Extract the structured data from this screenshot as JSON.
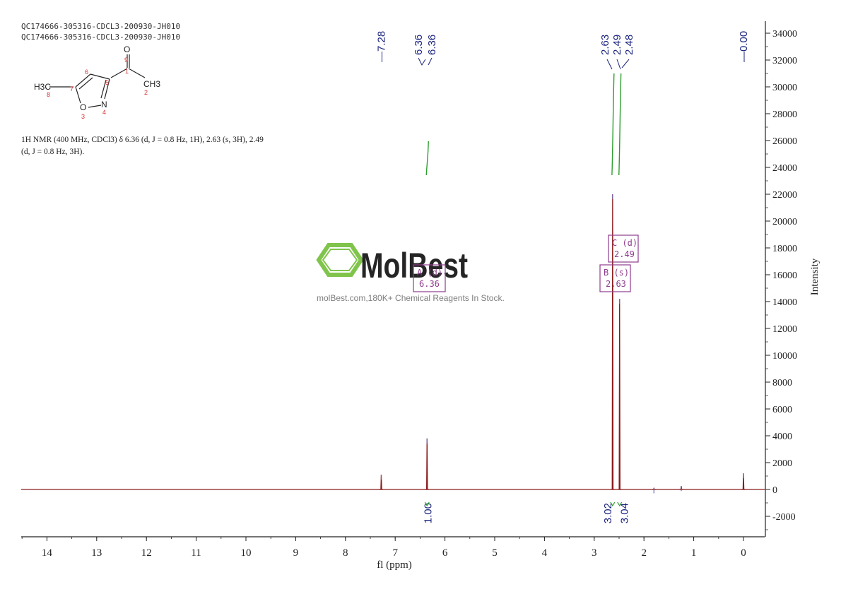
{
  "header": {
    "line1": "QC174666-305316-CDCL3-200930-JH010",
    "line2": "QC174666-305316-CDCL3-200930-JH010"
  },
  "structure": {
    "atoms": {
      "o9": "O",
      "n9": "9",
      "n1": "1",
      "ch3_right": "CH3",
      "n2": "2",
      "n6": "6",
      "n5": "5",
      "h3c_left": "H3C",
      "n7": "7",
      "n8": "8",
      "o3": "O",
      "n3": "3",
      "n_atom": "N",
      "n4": "4"
    }
  },
  "nmr_text": {
    "line1": "1H NMR (400 MHz, CDCl3) δ 6.36 (d, J = 0.8 Hz, 1H), 2.63 (s, 3H), 2.49",
    "line2": "(d, J = 0.8 Hz, 3H)."
  },
  "watermark": {
    "brand": "MolBest",
    "tagline": "molBest.com,180K+ Chemical Reagents In Stock."
  },
  "colors": {
    "spectrum": "#8b1a1a",
    "peak_labels": "#1a237e",
    "integral": "#2e9e2e",
    "multiplet_box": "#8e3d8e",
    "axis": "#222222",
    "brand_green": "#7ac143"
  },
  "chart_data": {
    "type": "line",
    "xlabel": "fl (ppm)",
    "ylabel": "Intensity",
    "xlim": [
      14.5,
      -0.4
    ],
    "ylim": [
      -3500,
      35000
    ],
    "x_ticks": [
      14,
      13,
      12,
      11,
      10,
      9,
      8,
      7,
      6,
      5,
      4,
      3,
      2,
      1,
      0
    ],
    "y_ticks": [
      34000,
      32000,
      30000,
      28000,
      26000,
      24000,
      22000,
      20000,
      18000,
      16000,
      14000,
      12000,
      10000,
      8000,
      6000,
      4000,
      2000,
      0,
      -2000
    ],
    "peaks": [
      {
        "ppm": 7.28,
        "intensity": 1100
      },
      {
        "ppm": 6.36,
        "intensity": 3800
      },
      {
        "ppm": 2.63,
        "intensity": 22000
      },
      {
        "ppm": 2.49,
        "intensity": 14200
      },
      {
        "ppm": 1.25,
        "intensity": 250
      },
      {
        "ppm": 1.8,
        "intensity": 80
      },
      {
        "ppm": 0.0,
        "intensity": 1200
      }
    ],
    "peak_labels": [
      "7.28",
      "6.36",
      "6.36",
      "2.63",
      "2.49",
      "2.48",
      "0.00"
    ],
    "integrals": [
      {
        "ppm": 6.36,
        "value": "1.00"
      },
      {
        "ppm": 2.63,
        "value": "3.02"
      },
      {
        "ppm": 2.49,
        "value": "3.04"
      }
    ],
    "multiplets": [
      {
        "label": "C (d)",
        "shift": "2.49"
      },
      {
        "label": "B (s)",
        "shift": "2.63"
      },
      {
        "label": "A (d)",
        "shift": "6.36"
      }
    ]
  }
}
